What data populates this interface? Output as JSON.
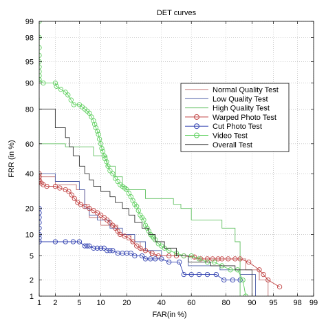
{
  "chart_data": {
    "type": "line",
    "title": "DET curves",
    "xlabel": "FAR(in %)",
    "ylabel": "FRR (in %)",
    "x_scale": "normal-deviate",
    "y_scale": "normal-deviate",
    "xlim": [
      1,
      99
    ],
    "ylim": [
      1,
      99
    ],
    "x_ticks": [
      1,
      2,
      5,
      10,
      20,
      40,
      60,
      80,
      90,
      95,
      98,
      99
    ],
    "x_tick_labels": [
      "1",
      "2",
      "5",
      "10",
      "20",
      "40",
      "60",
      "80",
      "90",
      "95",
      "98",
      "99"
    ],
    "y_ticks": [
      1,
      2,
      5,
      10,
      20,
      40,
      60,
      80,
      90,
      95,
      98,
      99
    ],
    "y_tick_labels": [
      "1",
      "2",
      "5",
      "10",
      "20",
      "40",
      "60",
      "80",
      "90",
      "95",
      "98",
      "99"
    ],
    "grid": true,
    "legend_position": "top-right",
    "series": [
      {
        "name": "Normal Quality Test",
        "color": "#c07070",
        "marker": "none",
        "points": [
          [
            1,
            38
          ],
          [
            2,
            38
          ],
          [
            2,
            33
          ],
          [
            4.5,
            33
          ],
          [
            4.5,
            30
          ],
          [
            6,
            30
          ],
          [
            6,
            22
          ],
          [
            7,
            22
          ],
          [
            7,
            16
          ],
          [
            10,
            16
          ],
          [
            10,
            13
          ],
          [
            16,
            13
          ],
          [
            16,
            10
          ],
          [
            22,
            10
          ],
          [
            22,
            8
          ],
          [
            27,
            8
          ],
          [
            27,
            6
          ],
          [
            33,
            6
          ],
          [
            33,
            5
          ],
          [
            62,
            5
          ],
          [
            62,
            4.5
          ],
          [
            88,
            4.5
          ],
          [
            88,
            3
          ],
          [
            92,
            3
          ],
          [
            92,
            2
          ],
          [
            94,
            2
          ],
          [
            94,
            1
          ]
        ]
      },
      {
        "name": "Low Quality Test",
        "color": "#5060a8",
        "marker": "none",
        "points": [
          [
            1,
            40
          ],
          [
            2,
            40
          ],
          [
            2,
            35
          ],
          [
            5,
            35
          ],
          [
            5,
            30
          ],
          [
            6,
            30
          ],
          [
            6,
            20
          ],
          [
            7,
            20
          ],
          [
            7,
            17
          ],
          [
            9,
            17
          ],
          [
            9,
            15
          ],
          [
            13,
            15
          ],
          [
            13,
            12
          ],
          [
            18,
            12
          ],
          [
            18,
            10
          ],
          [
            24,
            10
          ],
          [
            24,
            8
          ],
          [
            30,
            8
          ],
          [
            30,
            6
          ],
          [
            40,
            6
          ],
          [
            40,
            5
          ],
          [
            58,
            5
          ],
          [
            58,
            3.5
          ],
          [
            77,
            3.5
          ],
          [
            77,
            3
          ],
          [
            86,
            3
          ],
          [
            86,
            2.5
          ],
          [
            91,
            2.5
          ],
          [
            91,
            1
          ]
        ]
      },
      {
        "name": "High Quality Test",
        "color": "#60c060",
        "marker": "none",
        "points": [
          [
            1,
            85
          ],
          [
            1,
            60
          ],
          [
            3,
            60
          ],
          [
            3,
            58
          ],
          [
            8,
            58
          ],
          [
            8,
            52
          ],
          [
            12,
            52
          ],
          [
            12,
            45
          ],
          [
            15,
            45
          ],
          [
            15,
            38
          ],
          [
            18,
            38
          ],
          [
            18,
            32
          ],
          [
            20,
            32
          ],
          [
            20,
            30
          ],
          [
            30,
            30
          ],
          [
            30,
            25
          ],
          [
            48,
            25
          ],
          [
            48,
            22
          ],
          [
            53,
            22
          ],
          [
            53,
            20
          ],
          [
            60,
            20
          ],
          [
            60,
            15
          ],
          [
            78,
            15
          ],
          [
            78,
            12
          ],
          [
            84,
            12
          ],
          [
            84,
            8
          ],
          [
            86,
            8
          ],
          [
            86,
            1
          ]
        ]
      },
      {
        "name": "Warped Photo Test",
        "color": "#c04040",
        "marker": "circle",
        "points": [
          [
            1,
            40
          ],
          [
            1,
            38
          ],
          [
            1,
            36
          ],
          [
            1,
            35
          ],
          [
            1.1,
            34
          ],
          [
            1.2,
            33
          ],
          [
            1.4,
            32
          ],
          [
            2,
            32
          ],
          [
            2.4,
            31
          ],
          [
            3,
            30
          ],
          [
            3.4,
            29
          ],
          [
            3.8,
            27
          ],
          [
            4.2,
            25
          ],
          [
            4.7,
            23
          ],
          [
            5.2,
            22
          ],
          [
            6,
            21
          ],
          [
            7,
            20
          ],
          [
            8,
            19
          ],
          [
            9,
            18
          ],
          [
            10,
            17
          ],
          [
            11,
            16
          ],
          [
            12,
            15
          ],
          [
            13,
            14
          ],
          [
            14,
            13
          ],
          [
            15,
            12
          ],
          [
            16,
            11
          ],
          [
            17,
            10
          ],
          [
            19,
            9.5
          ],
          [
            21,
            9
          ],
          [
            23,
            8
          ],
          [
            25,
            7
          ],
          [
            27,
            6.5
          ],
          [
            30,
            6
          ],
          [
            34,
            5.5
          ],
          [
            38,
            5
          ],
          [
            45,
            5
          ],
          [
            50,
            5
          ],
          [
            55,
            5
          ],
          [
            62,
            4.8
          ],
          [
            66,
            4.5
          ],
          [
            70,
            4.5
          ],
          [
            73,
            4.5
          ],
          [
            76,
            4.5
          ],
          [
            78,
            4.5
          ],
          [
            81,
            4.5
          ],
          [
            84,
            4.5
          ],
          [
            86,
            4.5
          ],
          [
            89,
            4
          ],
          [
            92,
            3
          ],
          [
            93,
            2.5
          ],
          [
            94,
            2
          ],
          [
            96,
            1.5
          ]
        ]
      },
      {
        "name": "Cut Photo Test",
        "color": "#3040b0",
        "marker": "circle",
        "points": [
          [
            1,
            20
          ],
          [
            1,
            18
          ],
          [
            1,
            16
          ],
          [
            1,
            14
          ],
          [
            1,
            12
          ],
          [
            1,
            10
          ],
          [
            1,
            9
          ],
          [
            1,
            8
          ],
          [
            2,
            8
          ],
          [
            3,
            8
          ],
          [
            4,
            8
          ],
          [
            5,
            8
          ],
          [
            6,
            7
          ],
          [
            6.5,
            7
          ],
          [
            7,
            7
          ],
          [
            8,
            6.5
          ],
          [
            9,
            6.5
          ],
          [
            10,
            6.5
          ],
          [
            11,
            6.5
          ],
          [
            12,
            6
          ],
          [
            13,
            6
          ],
          [
            14,
            6
          ],
          [
            16,
            5.5
          ],
          [
            18,
            5.5
          ],
          [
            20,
            5.5
          ],
          [
            22,
            5.5
          ],
          [
            24,
            5
          ],
          [
            28,
            5
          ],
          [
            30,
            4.5
          ],
          [
            33,
            4.5
          ],
          [
            36,
            4.5
          ],
          [
            40,
            4.5
          ],
          [
            45,
            4
          ],
          [
            52,
            4
          ],
          [
            55,
            2.5
          ],
          [
            60,
            2.5
          ],
          [
            65,
            2.5
          ],
          [
            70,
            2.5
          ],
          [
            75,
            2.5
          ],
          [
            79,
            2
          ],
          [
            83,
            2
          ],
          [
            86,
            2
          ]
        ]
      },
      {
        "name": "Video Test",
        "color": "#60d060",
        "marker": "circle",
        "points": [
          [
            1,
            99
          ],
          [
            1,
            98
          ],
          [
            1,
            97
          ],
          [
            1,
            96
          ],
          [
            1,
            95
          ],
          [
            1,
            94
          ],
          [
            1,
            93
          ],
          [
            1,
            92
          ],
          [
            1,
            91
          ],
          [
            1.2,
            90
          ],
          [
            2,
            90
          ],
          [
            2.1,
            89
          ],
          [
            2.5,
            88
          ],
          [
            3,
            87
          ],
          [
            3.3,
            86
          ],
          [
            3.7,
            84
          ],
          [
            4.1,
            82
          ],
          [
            5,
            82
          ],
          [
            5.5,
            81
          ],
          [
            6,
            80
          ],
          [
            6.5,
            79
          ],
          [
            7,
            78
          ],
          [
            7.5,
            76
          ],
          [
            8,
            74
          ],
          [
            8.3,
            72
          ],
          [
            8.6,
            70
          ],
          [
            9,
            68
          ],
          [
            9.3,
            66
          ],
          [
            9.6,
            63
          ],
          [
            10,
            60
          ],
          [
            10.3,
            57
          ],
          [
            10.6,
            55
          ],
          [
            11,
            52
          ],
          [
            11.3,
            50
          ],
          [
            11.8,
            48
          ],
          [
            12.3,
            45
          ],
          [
            13,
            42
          ],
          [
            14,
            40
          ],
          [
            15,
            37
          ],
          [
            16,
            35
          ],
          [
            17,
            33
          ],
          [
            18,
            32
          ],
          [
            19,
            31
          ],
          [
            20,
            30
          ],
          [
            21,
            28
          ],
          [
            22,
            26
          ],
          [
            23,
            24
          ],
          [
            24,
            22
          ],
          [
            25,
            21
          ],
          [
            26,
            19
          ],
          [
            27,
            17
          ],
          [
            28,
            16
          ],
          [
            29,
            15
          ],
          [
            30,
            13
          ],
          [
            31,
            12
          ],
          [
            32,
            11
          ],
          [
            33,
            10
          ],
          [
            34,
            9.5
          ],
          [
            35,
            9
          ],
          [
            36,
            8.5
          ],
          [
            38,
            7.5
          ],
          [
            40,
            7
          ],
          [
            42,
            6.5
          ],
          [
            45,
            6
          ],
          [
            50,
            5.5
          ],
          [
            55,
            5
          ],
          [
            60,
            5
          ],
          [
            65,
            4.5
          ],
          [
            70,
            4
          ],
          [
            74,
            4
          ],
          [
            78,
            3.5
          ],
          [
            82,
            3
          ],
          [
            85,
            3
          ],
          [
            87,
            2
          ],
          [
            88,
            1
          ]
        ]
      },
      {
        "name": "Overall Test",
        "color": "#303030",
        "marker": "none",
        "points": [
          [
            1,
            80
          ],
          [
            2,
            80
          ],
          [
            2,
            70
          ],
          [
            3,
            70
          ],
          [
            3,
            64
          ],
          [
            3.5,
            64
          ],
          [
            3.5,
            58
          ],
          [
            4,
            58
          ],
          [
            4,
            52
          ],
          [
            5,
            52
          ],
          [
            5,
            45
          ],
          [
            6,
            45
          ],
          [
            6,
            40
          ],
          [
            7,
            40
          ],
          [
            7,
            36
          ],
          [
            8,
            36
          ],
          [
            8,
            32
          ],
          [
            10,
            32
          ],
          [
            10,
            29
          ],
          [
            13,
            29
          ],
          [
            13,
            26
          ],
          [
            15,
            26
          ],
          [
            15,
            23
          ],
          [
            18,
            23
          ],
          [
            18,
            20
          ],
          [
            21,
            20
          ],
          [
            21,
            17
          ],
          [
            24,
            17
          ],
          [
            24,
            14
          ],
          [
            28,
            14
          ],
          [
            28,
            12
          ],
          [
            32,
            12
          ],
          [
            32,
            10
          ],
          [
            36,
            10
          ],
          [
            36,
            8
          ],
          [
            42,
            8
          ],
          [
            42,
            6.5
          ],
          [
            50,
            6.5
          ],
          [
            50,
            5
          ],
          [
            58,
            5
          ],
          [
            58,
            4
          ],
          [
            72,
            4
          ],
          [
            72,
            3.5
          ],
          [
            84,
            3.5
          ],
          [
            84,
            3
          ],
          [
            90,
            3
          ],
          [
            90,
            1
          ]
        ]
      }
    ]
  }
}
